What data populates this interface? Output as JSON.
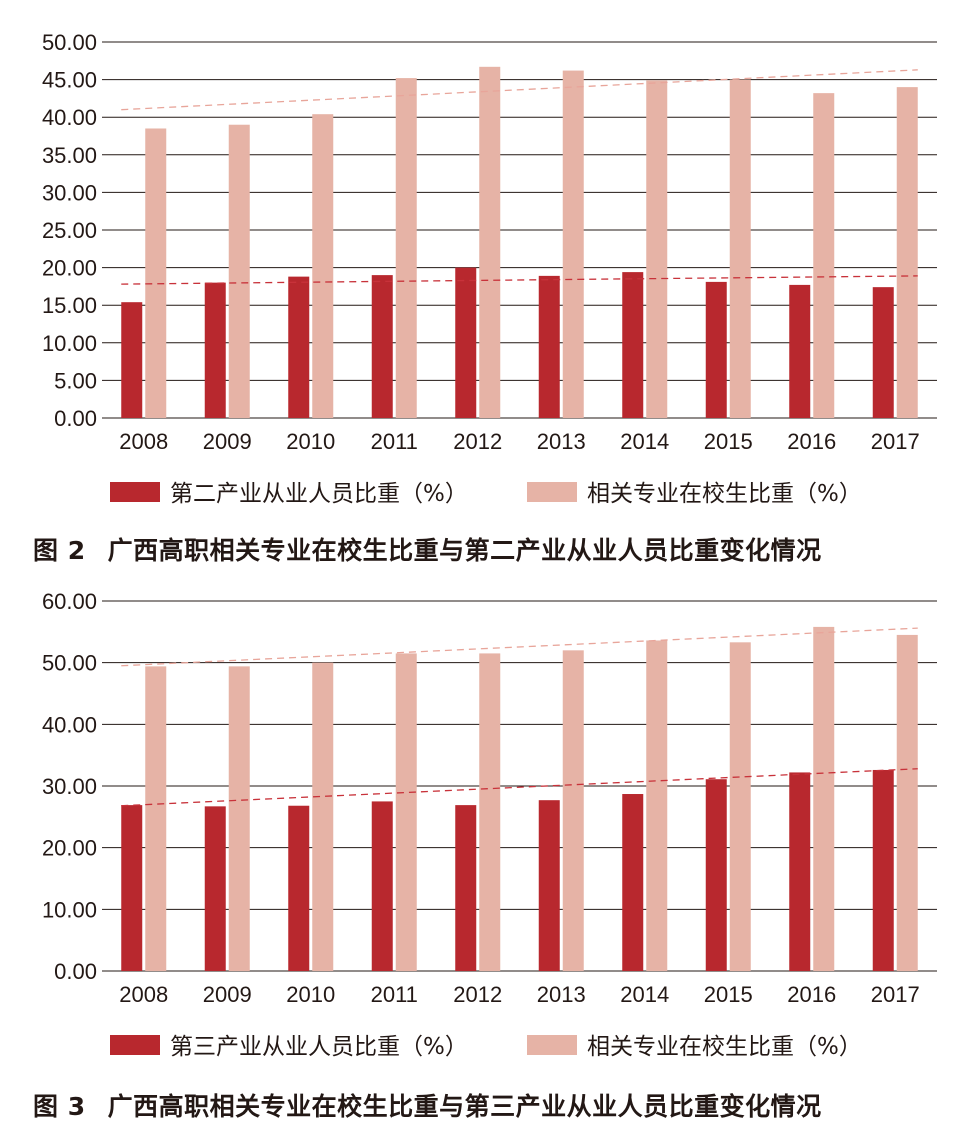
{
  "colors": {
    "industry_bar": "#b8282e",
    "enrollment_bar": "#e6b3a6",
    "industry_trend": "#c8323a",
    "enrollment_trend": "#e8a59a",
    "grid": "#231815",
    "text": "#231815"
  },
  "chart_data": [
    {
      "type": "bar",
      "caption_number": "图 2",
      "caption_text": "广西高职相关专业在校生比重与第二产业从业人员比重变化情况",
      "categories": [
        "2008",
        "2009",
        "2010",
        "2011",
        "2012",
        "2013",
        "2014",
        "2015",
        "2016",
        "2017"
      ],
      "series": [
        {
          "name": "第二产业从业人员比重（%）",
          "values": [
            15.4,
            18.0,
            18.8,
            19.0,
            20.0,
            18.9,
            19.4,
            18.1,
            17.7,
            17.4
          ]
        },
        {
          "name": "相关专业在校生比重（%）",
          "values": [
            38.5,
            39.0,
            40.4,
            45.2,
            46.7,
            46.2,
            44.9,
            45.0,
            43.2,
            44.0
          ]
        }
      ],
      "trendlines": [
        {
          "series": 0,
          "start": 17.8,
          "end": 18.9
        },
        {
          "series": 1,
          "start": 41.0,
          "end": 46.3
        }
      ],
      "y_ticks": [
        "0.00",
        "5.00",
        "10.00",
        "15.00",
        "20.00",
        "25.00",
        "30.00",
        "35.00",
        "40.00",
        "45.00",
        "50.00"
      ],
      "ylim": [
        0,
        50
      ],
      "grid": true,
      "legend_position": "bottom"
    },
    {
      "type": "bar",
      "caption_number": "图 3",
      "caption_text": "广西高职相关专业在校生比重与第三产业从业人员比重变化情况",
      "categories": [
        "2008",
        "2009",
        "2010",
        "2011",
        "2012",
        "2013",
        "2014",
        "2015",
        "2016",
        "2017"
      ],
      "series": [
        {
          "name": "第三产业从业人员比重（%）",
          "values": [
            26.9,
            26.7,
            26.8,
            27.5,
            26.9,
            27.7,
            28.7,
            31.1,
            32.2,
            32.6
          ]
        },
        {
          "name": "相关专业在校生比重（%）",
          "values": [
            49.4,
            49.4,
            50.0,
            51.5,
            51.5,
            52.0,
            53.6,
            53.3,
            55.8,
            54.5
          ]
        }
      ],
      "trendlines": [
        {
          "series": 0,
          "start": 26.8,
          "end": 32.8
        },
        {
          "series": 1,
          "start": 49.5,
          "end": 55.6
        }
      ],
      "y_ticks": [
        "0.00",
        "10.00",
        "20.00",
        "30.00",
        "40.00",
        "50.00",
        "60.00"
      ],
      "ylim": [
        0,
        60
      ],
      "grid": true,
      "legend_position": "bottom"
    }
  ]
}
